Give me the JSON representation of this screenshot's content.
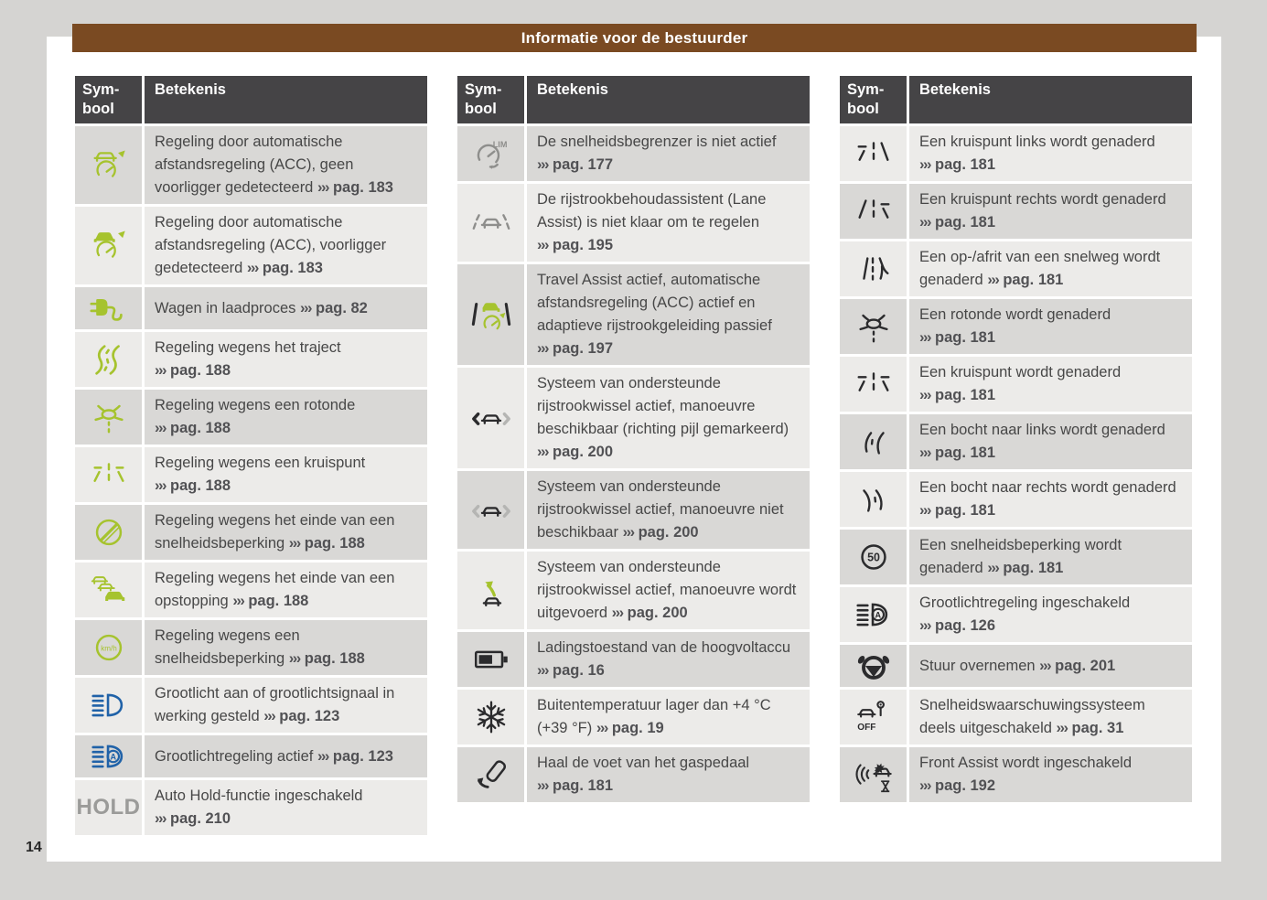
{
  "header": {
    "title": "Informatie voor de bestuurder"
  },
  "page_number": "14",
  "arrow_glyph": "›››",
  "colors": {
    "brown": "#7a4a22",
    "headgray": "#454446",
    "rowdark": "#d9d8d6",
    "rowlight": "#ecebe9",
    "green": "#a6c32e",
    "blue": "#2062a8",
    "dark": "#2b2b2d",
    "gray": "#8e8e8c",
    "midgray": "#b5b5b3",
    "text": "#474747",
    "textbold": "#515154"
  },
  "tables": [
    {
      "col_symbol": "Sym-bool",
      "col_meaning": "Betekenis",
      "first_row_shade": "dark",
      "rows": [
        {
          "icon": "acc-no-vehicle",
          "text": "Regeling door automatische afstandsregeling (ACC), geen voorligger gedetecteerd",
          "page_ref": "pag. 183"
        },
        {
          "icon": "acc-vehicle-detected",
          "text": "Regeling door automatische afstandsregeling (ACC), voorligger gedetecteerd",
          "page_ref": "pag. 183"
        },
        {
          "icon": "charging-plug",
          "text": "Wagen in laadproces",
          "page_ref": "pag. 82"
        },
        {
          "icon": "winding-road",
          "text": "Regeling wegens het traject",
          "page_ref": "pag. 188"
        },
        {
          "icon": "roundabout-green",
          "text": "Regeling wegens een rotonde",
          "page_ref": "pag. 188"
        },
        {
          "icon": "junction-green",
          "text": "Regeling wegens een kruispunt",
          "page_ref": "pag. 188"
        },
        {
          "icon": "end-of-speed-limit",
          "text": "Regeling wegens het einde van een snelheidsbeperking",
          "page_ref": "pag. 188"
        },
        {
          "icon": "end-of-traffic-jam",
          "text": "Regeling wegens het einde van een opstopping",
          "page_ref": "pag. 188"
        },
        {
          "icon": "speed-limit-kmh",
          "text": "Regeling wegens een snelheidsbeperking",
          "page_ref": "pag. 188"
        },
        {
          "icon": "high-beam",
          "text": "Grootlicht aan of grootlichtsignaal in werking gesteld",
          "page_ref": "pag. 123"
        },
        {
          "icon": "high-beam-auto",
          "text": "Grootlichtregeling actief",
          "page_ref": "pag. 123"
        },
        {
          "icon": "hold",
          "symbol_text": "HOLD",
          "text": "Auto Hold-functie ingeschakeld",
          "page_ref": "pag. 210"
        }
      ]
    },
    {
      "col_symbol": "Sym-bool",
      "col_meaning": "Betekenis",
      "first_row_shade": "dark",
      "rows": [
        {
          "icon": "speed-limiter-lim",
          "text": "De snelheidsbegrenzer is niet actief",
          "page_ref": "pag. 177"
        },
        {
          "icon": "lane-assist-not-ready",
          "text": "De rijstrookbehoudassistent (Lane Assist) is niet klaar om te regelen",
          "page_ref": "pag. 195"
        },
        {
          "icon": "travel-assist",
          "text": "Travel Assist actief, automatische afstandsregeling (ACC) actief en adaptieve rijstrookgeleiding passief",
          "page_ref": "pag. 197"
        },
        {
          "icon": "lane-change-available",
          "text": "Systeem van ondersteunde rijstrookwissel actief, manoeuvre beschikbaar (richting pijl gemarkeerd)",
          "page_ref": "pag. 200"
        },
        {
          "icon": "lane-change-unavailable",
          "text": "Systeem van ondersteunde rijstrookwissel actief, manoeuvre niet beschikbaar",
          "page_ref": "pag. 200"
        },
        {
          "icon": "lane-change-executing",
          "text": "Systeem van ondersteunde rijstrookwissel actief, manoeuvre wordt uitgevoerd",
          "page_ref": "pag. 200"
        },
        {
          "icon": "battery-charge",
          "text": "Ladingstoestand van de hoogvoltaccu",
          "page_ref": "pag. 16"
        },
        {
          "icon": "snowflake",
          "text": "Buitentemperatuur lager dan +4 °C (+39 °F)",
          "page_ref": "pag. 19"
        },
        {
          "icon": "release-accelerator",
          "text": "Haal de voet van het gaspedaal",
          "page_ref": "pag. 181"
        }
      ]
    },
    {
      "col_symbol": "Sym-bool",
      "col_meaning": "Betekenis",
      "first_row_shade": "light",
      "rows": [
        {
          "icon": "junction-left",
          "text": "Een kruispunt links wordt genaderd",
          "page_ref": "pag. 181"
        },
        {
          "icon": "junction-right",
          "text": "Een kruispunt rechts wordt genaderd",
          "page_ref": "pag. 181"
        },
        {
          "icon": "highway-ramp",
          "text": "Een op-/afrit van een snelweg wordt genaderd",
          "page_ref": "pag. 181"
        },
        {
          "icon": "roundabout-ahead",
          "text": "Een rotonde wordt genaderd",
          "page_ref": "pag. 181"
        },
        {
          "icon": "junction-ahead",
          "text": "Een kruispunt wordt genaderd",
          "page_ref": "pag. 181"
        },
        {
          "icon": "curve-left",
          "text": "Een bocht naar links wordt genaderd",
          "page_ref": "pag. 181"
        },
        {
          "icon": "curve-right",
          "text": "Een bocht naar rechts wordt genaderd",
          "page_ref": "pag. 181"
        },
        {
          "icon": "speed-limit-50",
          "text": "Een snelheidsbeperking wordt genaderd",
          "page_ref": "pag. 181"
        },
        {
          "icon": "high-beam-auto-dark",
          "text": "Grootlichtregeling ingeschakeld",
          "page_ref": "pag. 126"
        },
        {
          "icon": "steering-wheel",
          "text": "Stuur overnemen",
          "page_ref": "pag. 201"
        },
        {
          "icon": "speed-warning-off",
          "text": "Snelheidswaarschuwingssysteem deels uitgeschakeld",
          "page_ref": "pag. 31"
        },
        {
          "icon": "front-assist",
          "text": "Front Assist wordt ingeschakeld",
          "page_ref": "pag. 192"
        }
      ]
    }
  ]
}
